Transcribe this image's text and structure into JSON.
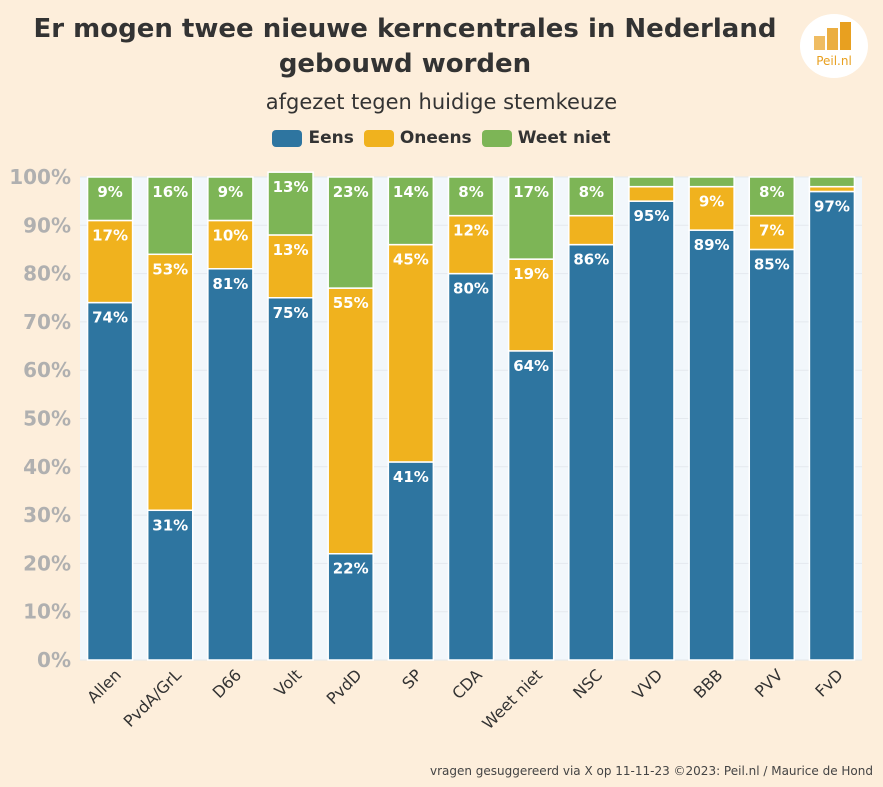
{
  "chart_data": {
    "type": "bar",
    "stacked": true,
    "title": "Er mogen twee nieuwe kerncentrales in Nederland gebouwd worden",
    "subtitle": "afgezet tegen huidige stemkeuze",
    "categories": [
      "Allen",
      "PvdA/GrL",
      "D66",
      "Volt",
      "PvdD",
      "SP",
      "CDA",
      "Weet niet",
      "NSC",
      "VVD",
      "BBB",
      "PVV",
      "FvD"
    ],
    "series": [
      {
        "name": "Eens",
        "color": "#2e75a0",
        "values": [
          74,
          31,
          81,
          75,
          22,
          41,
          80,
          64,
          86,
          95,
          89,
          85,
          97
        ]
      },
      {
        "name": "Oneens",
        "color": "#f0b21e",
        "values": [
          17,
          53,
          10,
          13,
          55,
          45,
          12,
          19,
          6,
          3,
          9,
          7,
          1
        ]
      },
      {
        "name": "Weet niet",
        "color": "#7db556",
        "values": [
          9,
          16,
          9,
          13,
          23,
          14,
          8,
          17,
          8,
          2,
          2,
          8,
          2
        ]
      }
    ],
    "labels": [
      [
        "74%",
        "31%",
        "81%",
        "75%",
        "22%",
        "41%",
        "80%",
        "64%",
        "86%",
        "95%",
        "89%",
        "85%",
        "97%"
      ],
      [
        "17%",
        "53%",
        "10%",
        "13%",
        "55%",
        "45%",
        "12%",
        "19%",
        "",
        "",
        "9%",
        "7%",
        ""
      ],
      [
        "9%",
        "16%",
        "9%",
        "13%",
        "23%",
        "14%",
        "8%",
        "17%",
        "8%",
        "",
        "",
        "8%",
        ""
      ]
    ],
    "yticks": [
      "0%",
      "10%",
      "20%",
      "30%",
      "40%",
      "50%",
      "60%",
      "70%",
      "80%",
      "90%",
      "100%"
    ],
    "ylim": [
      0,
      100
    ],
    "legend_position": "top-center"
  },
  "header": {
    "title_line1": "Er mogen twee nieuwe kerncentrales in Nederland",
    "title_line2": "gebouwd worden",
    "subtitle": "afgezet tegen huidige stemkeuze"
  },
  "legend": {
    "items": [
      {
        "label": "Eens",
        "color": "#2e75a0"
      },
      {
        "label": "Oneens",
        "color": "#f0b21e"
      },
      {
        "label": "Weet niet",
        "color": "#7db556"
      }
    ]
  },
  "logo": {
    "text": "Peil.nl"
  },
  "footer": {
    "text": "vragen gesuggereerd via X op 11-11-23 ©2023: Peil.nl / Maurice de Hond"
  }
}
